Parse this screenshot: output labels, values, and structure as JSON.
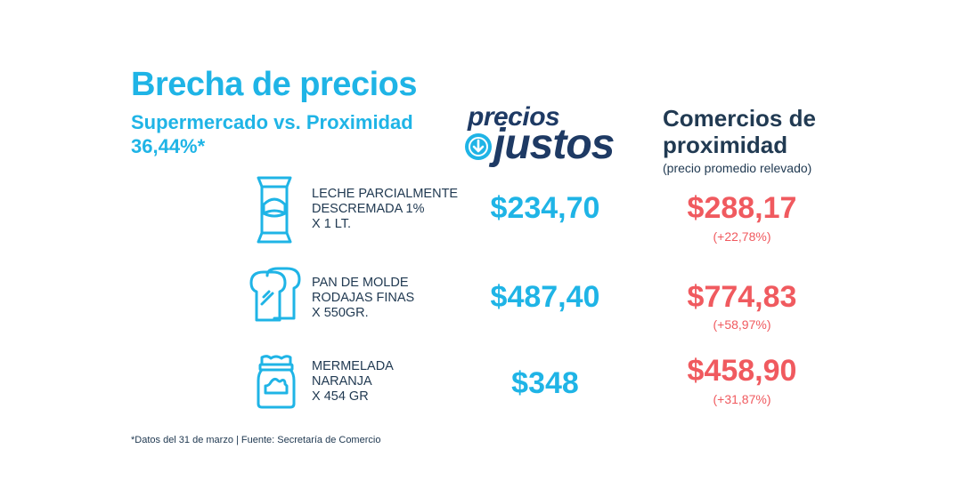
{
  "header": {
    "title": "Brecha de precios",
    "subtitle_line1": "Supermercado vs. Proximidad",
    "subtitle_line2": "36,44%*"
  },
  "logo": {
    "text_top": "precios",
    "text_bottom": "justos"
  },
  "proximity": {
    "title_line1": "Comercios de",
    "title_line2": "proximidad",
    "subtitle": "(precio promedio relevado)"
  },
  "products": [
    {
      "icon": "milk-bag-icon",
      "label_lines": [
        "LECHE PARCIALMENTE",
        "DESCREMADA 1%",
        "X 1 LT."
      ],
      "precios_justos_price": "$234,70",
      "proximity_price": "$288,17",
      "proximity_diff": "(+22,78%)"
    },
    {
      "icon": "bread-icon",
      "label_lines": [
        "PAN DE MOLDE",
        "RODAJAS FINAS",
        "X 550GR."
      ],
      "precios_justos_price": "$487,40",
      "proximity_price": "$774,83",
      "proximity_diff": "(+58,97%)"
    },
    {
      "icon": "jam-jar-icon",
      "label_lines": [
        "MERMELADA",
        "NARANJA",
        "X 454 GR"
      ],
      "precios_justos_price": "$348",
      "proximity_price": "$458,90",
      "proximity_diff": "(+31,87%)"
    }
  ],
  "footnote": "*Datos del 31 de marzo | Fuente: Secretaría de Comercio",
  "colors": {
    "cyan": "#1fb4e6",
    "navy": "#213a52",
    "red": "#f05a5f"
  }
}
